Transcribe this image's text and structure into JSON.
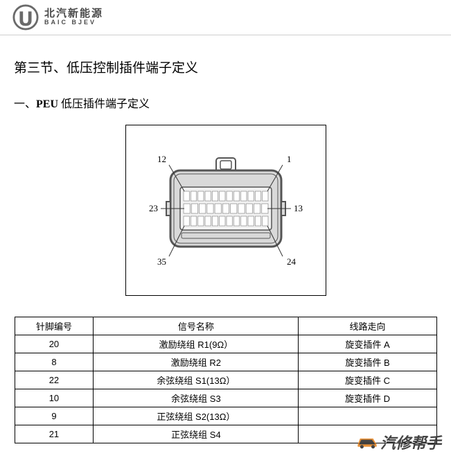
{
  "header": {
    "brand_cn": "北汽新能源",
    "brand_en": "BAIC BJEV",
    "logo_outer_color": "#6a6a6a",
    "logo_inner_color": "#ffffff"
  },
  "section": {
    "title": "第三节、低压控制插件端子定义",
    "subsection_prefix": "一、",
    "subsection_peu": "PEU",
    "subsection_suffix": " 低压插件端子定义"
  },
  "connector": {
    "labels": {
      "top_left": "12",
      "top_right": "1",
      "mid_left": "23",
      "mid_right": "13",
      "bot_left": "35",
      "bot_right": "24"
    },
    "label_fontsize": 13,
    "body_fill": "#d9d9d9",
    "body_stroke": "#555555",
    "pin_fill": "#ffffff",
    "pin_stroke": "#888888",
    "pointer_stroke": "#333333",
    "pins_top_row": 12,
    "pins_mid_row": 11,
    "pins_bot_row": 12
  },
  "table": {
    "headers": [
      "针脚编号",
      "信号名称",
      "线路走向"
    ],
    "rows": [
      [
        "20",
        "激励绕组 R1(9Ω）",
        "旋变插件 A"
      ],
      [
        "8",
        "激励绕组 R2",
        "旋变插件 B"
      ],
      [
        "22",
        "余弦绕组 S1(13Ω）",
        "旋变插件 C"
      ],
      [
        "10",
        "余弦绕组 S3",
        "旋变插件 D"
      ],
      [
        "9",
        "正弦绕组 S2(13Ω）",
        ""
      ],
      [
        "21",
        "正弦绕组 S4",
        ""
      ]
    ],
    "header_font_size": 13,
    "cell_font_size": 13,
    "border_color": "#000000"
  },
  "watermark": {
    "text": "汽修帮手",
    "icon_color1": "#e78b2d",
    "icon_color2": "#3a3a3a"
  }
}
